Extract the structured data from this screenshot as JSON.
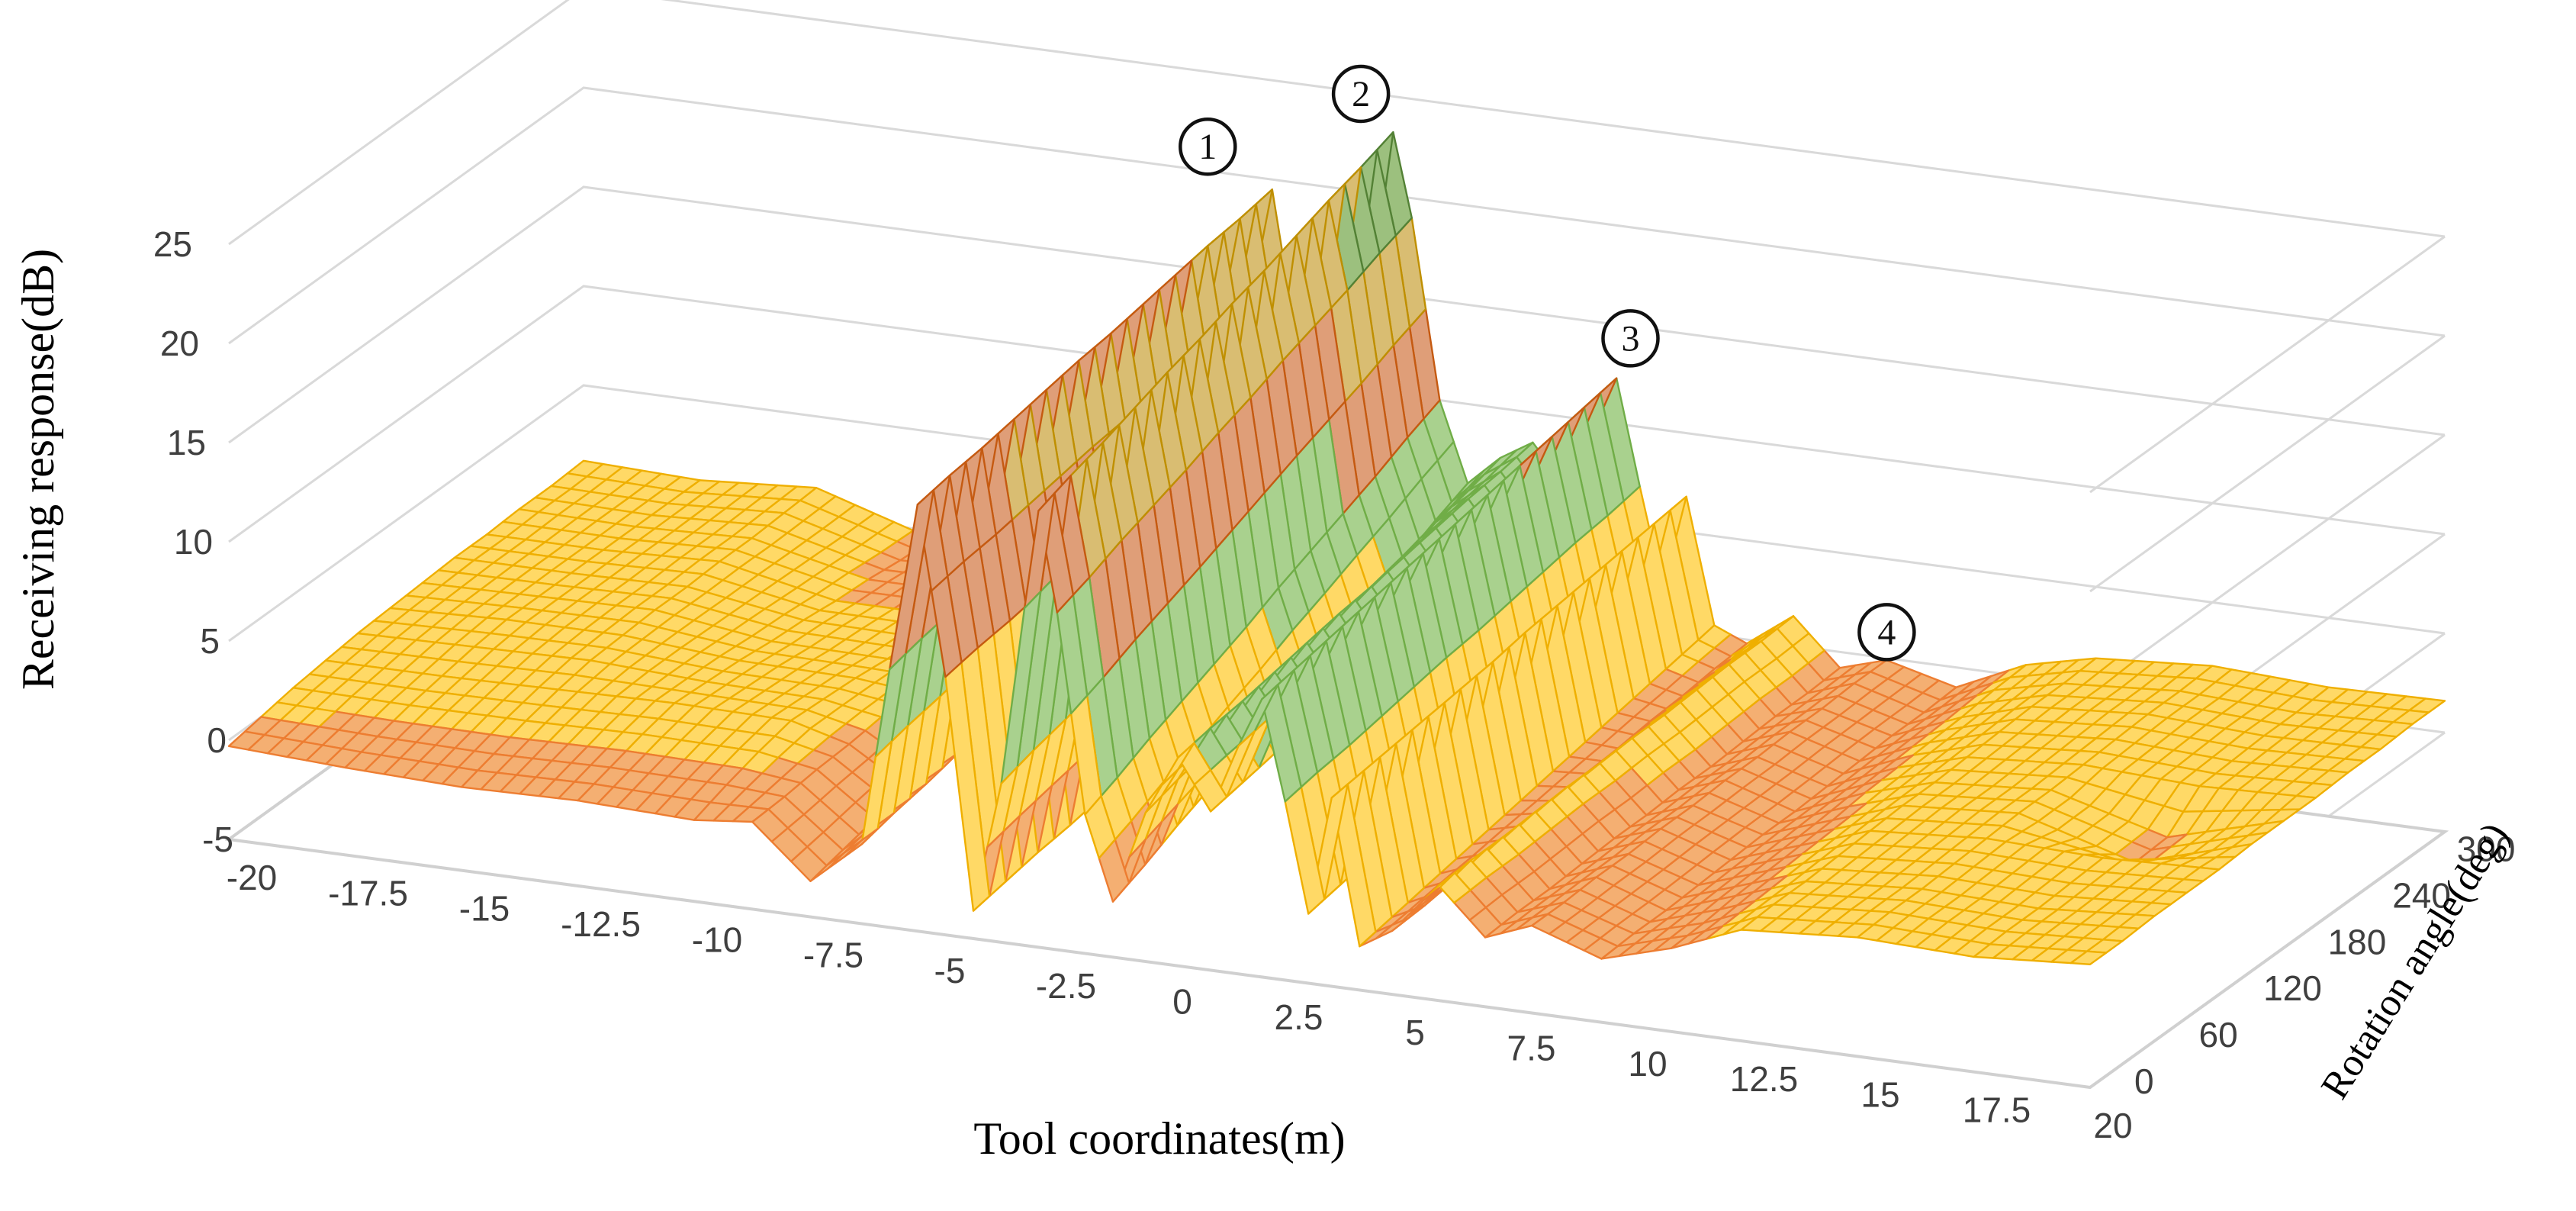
{
  "page": {
    "background": "#ffffff"
  },
  "chart_data": {
    "type": "surface",
    "title": "",
    "x_axis": {
      "label": "Tool coordinates(m)",
      "range": [
        -20,
        20
      ],
      "ticks": [
        -20,
        -17.5,
        -15,
        -12.5,
        -10,
        -7.5,
        -5,
        -2.5,
        0,
        2.5,
        5,
        7.5,
        10,
        12.5,
        15,
        17.5,
        20
      ]
    },
    "y_axis": {
      "label": "Receiving response(dB)",
      "range": [
        -5,
        25
      ],
      "band_size": 5,
      "ticks": [
        -5,
        0,
        5,
        10,
        15,
        20,
        25
      ]
    },
    "z_axis": {
      "label": "Rotation angle(deg)",
      "range": [
        0,
        330
      ],
      "ticks": [
        0,
        60,
        120,
        180,
        240,
        300
      ]
    },
    "grid": {
      "on": true,
      "color": "#D9D9D9",
      "floor_edge_color": "#D0D0D0"
    },
    "bands": [
      {
        "min": -5,
        "max": 0,
        "fill": "#F4AF72",
        "line": "#ED7D31"
      },
      {
        "min": 0,
        "max": 5,
        "fill": "#FFD966",
        "line": "#EFAF00"
      },
      {
        "min": 5,
        "max": 10,
        "fill": "#A9D18E",
        "line": "#70AD47"
      },
      {
        "min": 10,
        "max": 15,
        "fill": "#DF9E78",
        "line": "#C55A11"
      },
      {
        "min": 15,
        "max": 20,
        "fill": "#D9BD72",
        "line": "#BF8F00"
      },
      {
        "min": 20,
        "max": 25,
        "fill": "#9CC07E",
        "line": "#538135"
      }
    ],
    "x": [
      -20,
      -17.5,
      -15,
      -12.5,
      -10,
      -8.75,
      -7.5,
      -6.4,
      -5.8,
      -5.2,
      -4.6,
      -4,
      -3.4,
      -2.9,
      -2.6,
      -2.2,
      -1.6,
      -1,
      -0.3,
      0.4,
      1.1,
      1.7,
      2.2,
      2.7,
      3.2,
      3.7,
      4.3,
      5,
      6,
      7,
      8,
      9.5,
      11,
      12.5,
      15,
      17.5,
      20
    ],
    "angles": [
      0,
      30,
      60,
      90,
      120,
      150,
      180,
      210,
      240,
      270,
      300,
      330
    ],
    "values": [
      [
        -0.3,
        -0.6,
        -0.8,
        -0.7,
        -0.9,
        -0.6,
        -3.2,
        -1.0,
        8.0,
        16.5,
        8.0,
        -3.6,
        3.0,
        12.0,
        17.0,
        12.0,
        2.0,
        -2.2,
        2.5,
        5.5,
        3.0,
        6.5,
        9.0,
        4.0,
        -1.5,
        4.5,
        -2.8,
        -1.8,
        0.8,
        -1.5,
        -0.6,
        -1.8,
        -0.8,
        0.6,
        1.0,
        0.8,
        1.2
      ],
      [
        0.0,
        -0.2,
        -0.3,
        -0.2,
        -0.3,
        -0.5,
        -2.8,
        -0.6,
        8.4,
        16.8,
        8.3,
        -3.3,
        3.5,
        12.5,
        17.6,
        12.6,
        2.7,
        -1.5,
        3.0,
        5.8,
        3.3,
        6.8,
        9.3,
        4.3,
        -1.2,
        4.7,
        -2.5,
        -1.7,
        0.9,
        -1.4,
        -0.6,
        -1.7,
        -0.7,
        0.7,
        1.1,
        0.9,
        1.2
      ],
      [
        0.3,
        0.2,
        0.2,
        0.3,
        0.2,
        -0.3,
        -2.4,
        -0.3,
        8.7,
        17.0,
        8.5,
        -3.0,
        3.9,
        13.1,
        18.1,
        13.3,
        3.5,
        -0.7,
        3.4,
        6.0,
        3.6,
        7.0,
        9.6,
        4.5,
        -0.9,
        4.9,
        -2.2,
        -1.5,
        0.9,
        -1.4,
        -0.5,
        -1.7,
        -0.5,
        0.7,
        1.1,
        0.9,
        1.3
      ],
      [
        0.5,
        0.5,
        0.6,
        0.7,
        0.6,
        -0.2,
        -2.0,
        0.1,
        9.1,
        17.3,
        8.8,
        -2.8,
        4.4,
        13.6,
        18.7,
        13.9,
        4.2,
        0.0,
        3.9,
        6.3,
        4.0,
        7.3,
        9.9,
        4.8,
        -0.5,
        5.1,
        -1.9,
        -1.4,
        1.0,
        -1.3,
        -0.5,
        -1.6,
        -0.4,
        0.8,
        1.2,
        1.0,
        1.3
      ],
      [
        0.7,
        0.8,
        0.9,
        0.6,
        0.5,
        0.0,
        -1.6,
        0.5,
        9.5,
        17.6,
        9.1,
        -2.5,
        4.8,
        14.2,
        19.3,
        14.5,
        4.9,
        0.8,
        4.3,
        6.6,
        4.3,
        7.6,
        10.2,
        5.1,
        -0.2,
        5.3,
        -1.6,
        -1.2,
        1.1,
        -1.2,
        -0.4,
        -1.5,
        -0.3,
        0.9,
        1.3,
        1.1,
        1.3
      ],
      [
        0.8,
        1.0,
        1.0,
        0.5,
        0.4,
        0.1,
        -1.2,
        0.8,
        9.8,
        17.9,
        9.4,
        -2.2,
        5.3,
        14.7,
        19.8,
        15.2,
        5.6,
        1.5,
        4.8,
        6.9,
        4.6,
        7.9,
        10.5,
        5.4,
        0.1,
        5.5,
        -1.3,
        -1.1,
        1.1,
        -1.2,
        -0.4,
        -1.4,
        -0.2,
        1.0,
        1.4,
        -0.3,
        1.4
      ],
      [
        0.9,
        1.0,
        1.1,
        0.3,
        0.2,
        0.3,
        -0.8,
        1.2,
        10.2,
        18.1,
        9.6,
        -1.9,
        5.7,
        15.3,
        20.4,
        15.8,
        6.4,
        2.3,
        5.2,
        7.1,
        4.9,
        8.1,
        10.8,
        5.6,
        0.4,
        5.8,
        -1.0,
        -0.9,
        1.2,
        -1.1,
        -0.3,
        -1.4,
        0.0,
        1.0,
        1.4,
        -0.2,
        1.4
      ],
      [
        1.0,
        1.0,
        1.1,
        0.2,
        0.1,
        0.4,
        -0.4,
        1.5,
        10.5,
        18.4,
        9.9,
        -1.6,
        6.2,
        15.8,
        20.9,
        16.5,
        7.1,
        3.0,
        5.7,
        7.4,
        5.2,
        8.4,
        11.1,
        5.9,
        0.7,
        6.0,
        -0.7,
        -0.8,
        1.2,
        -1.1,
        -0.3,
        -1.3,
        0.1,
        1.1,
        1.5,
        1.2,
        1.4
      ],
      [
        1.0,
        1.0,
        1.2,
        0.0,
        0.0,
        0.6,
        0.0,
        1.9,
        10.9,
        18.7,
        10.2,
        -1.3,
        6.6,
        16.4,
        21.5,
        17.1,
        7.8,
        3.8,
        6.1,
        7.7,
        5.5,
        8.7,
        11.4,
        6.2,
        1.0,
        6.2,
        -0.4,
        -0.6,
        1.3,
        -1.0,
        -0.2,
        -1.2,
        0.2,
        1.2,
        1.6,
        1.3,
        1.5
      ],
      [
        1.1,
        1.0,
        1.2,
        -0.1,
        -0.1,
        0.7,
        0.4,
        2.3,
        11.3,
        19.0,
        10.5,
        -1.1,
        7.1,
        16.9,
        22.1,
        17.7,
        8.5,
        4.5,
        6.6,
        8.0,
        5.9,
        9.0,
        11.7,
        6.5,
        1.4,
        6.4,
        -0.1,
        -0.5,
        1.4,
        -0.9,
        -0.2,
        -1.1,
        0.3,
        1.3,
        1.7,
        1.4,
        1.5
      ],
      [
        1.1,
        1.0,
        1.3,
        -0.3,
        -0.2,
        0.9,
        0.8,
        2.6,
        11.6,
        19.2,
        10.7,
        -0.8,
        7.5,
        17.5,
        22.6,
        18.4,
        9.3,
        5.3,
        7.0,
        8.2,
        6.2,
        9.2,
        12.0,
        6.7,
        1.7,
        6.6,
        0.2,
        -0.3,
        1.4,
        -0.9,
        -0.1,
        -1.1,
        0.5,
        1.3,
        1.7,
        1.4,
        1.6
      ],
      [
        1.2,
        1.0,
        1.4,
        -0.4,
        -0.3,
        1.0,
        1.2,
        3.0,
        12.0,
        19.5,
        11.0,
        -0.5,
        8.0,
        18.0,
        23.2,
        19.0,
        10.0,
        6.0,
        7.5,
        8.5,
        6.5,
        9.5,
        12.3,
        7.0,
        2.0,
        6.8,
        0.5,
        -0.2,
        1.5,
        -0.8,
        -0.1,
        -1.0,
        0.6,
        1.4,
        1.8,
        1.5,
        1.6
      ]
    ],
    "annotations": [
      {
        "label": "1",
        "x": -5.2,
        "angle": 270,
        "value": 24.0
      },
      {
        "label": "2",
        "x": -2.6,
        "angle": 300,
        "value": 26.3
      },
      {
        "label": "3",
        "x": 2.5,
        "angle": 330,
        "value": 14.4
      },
      {
        "label": "4",
        "x": 8.7,
        "angle": 300,
        "value": 2.7
      }
    ]
  }
}
